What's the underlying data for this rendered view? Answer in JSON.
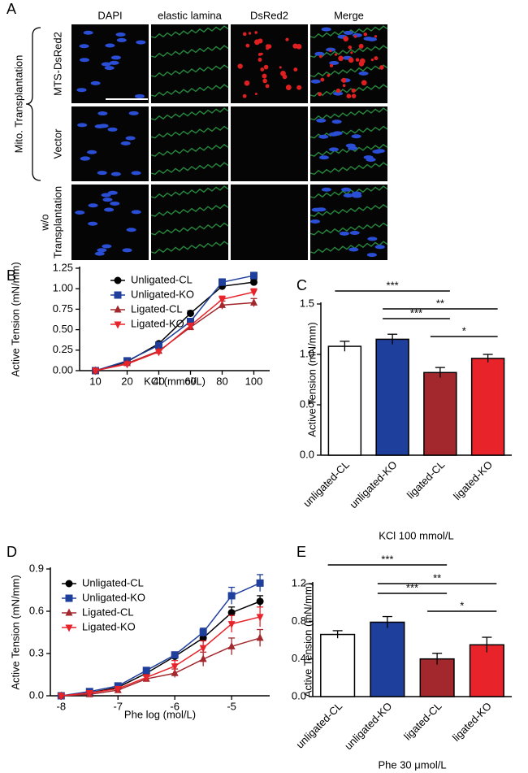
{
  "panel_a": {
    "label": "A",
    "columns": [
      "DAPI",
      "elastic lamina",
      "DsRed2",
      "Merge"
    ],
    "rows": [
      [
        "MTS-DsRed2"
      ],
      [
        "Vector"
      ],
      [
        "w/o",
        "Transplantation"
      ]
    ],
    "group": "Mito. Transplantation"
  },
  "chart_data": [
    {
      "type": "line",
      "panel": "B",
      "ylabel": "Active Tension (mN/mm)",
      "xlabel": "KCl (mmol/L)",
      "categories": [
        "10",
        "20",
        "40",
        "60",
        "80",
        "100"
      ],
      "ylim": [
        0,
        1.25
      ],
      "yticks": [
        {
          "value": 0,
          "label": "0.00"
        },
        {
          "value": 0.25,
          "label": "0.25"
        },
        {
          "value": 0.5,
          "label": "0.50"
        },
        {
          "value": 0.75,
          "label": "0.75"
        },
        {
          "value": 1,
          "label": "1.00"
        },
        {
          "value": 1.25,
          "label": "1.25"
        }
      ],
      "series": [
        {
          "name": "Unligated-CL",
          "color": "#000000",
          "marker": "circle",
          "values": [
            0,
            0.11,
            0.33,
            0.7,
            1.03,
            1.08
          ],
          "errors": [
            0,
            0.01,
            0.02,
            0.03,
            0.03,
            0.03
          ]
        },
        {
          "name": "Unligated-KO",
          "color": "#1f3f9c",
          "marker": "square",
          "values": [
            0,
            0.12,
            0.31,
            0.6,
            1.08,
            1.16
          ],
          "errors": [
            0,
            0.01,
            0.02,
            0.03,
            0.04,
            0.04
          ]
        },
        {
          "name": "Ligated-CL",
          "color": "#a3282d",
          "marker": "triangle",
          "values": [
            0,
            0.09,
            0.24,
            0.53,
            0.8,
            0.83
          ],
          "errors": [
            0,
            0.01,
            0.02,
            0.03,
            0.05,
            0.05
          ]
        },
        {
          "name": "Ligated-KO",
          "color": "#e8232a",
          "marker": "triangle-down",
          "values": [
            0,
            0.08,
            0.23,
            0.55,
            0.87,
            0.96
          ],
          "errors": [
            0,
            0.01,
            0.02,
            0.03,
            0.04,
            0.04
          ]
        }
      ]
    },
    {
      "type": "bar",
      "panel": "C",
      "ylabel": "Active Tension (mN/mm)",
      "xlabel": "KCl 100 mmol/L",
      "categories": [
        "unligated-CL",
        "unligated-KO",
        "ligated-CL",
        "ligated-KO"
      ],
      "values": [
        1.08,
        1.15,
        0.82,
        0.96
      ],
      "errors": [
        0.05,
        0.05,
        0.05,
        0.04
      ],
      "colors": [
        "#ffffff",
        "#1f3f9c",
        "#a3282d",
        "#e8232a"
      ],
      "ylim": [
        0,
        1.5
      ],
      "yticks": [
        {
          "value": 0,
          "label": "0.0"
        },
        {
          "value": 0.5,
          "label": "0.5"
        },
        {
          "value": 1,
          "label": "1.0"
        },
        {
          "value": 1.5,
          "label": "1.5"
        }
      ],
      "annotations": [
        "***",
        "**",
        "***",
        "*"
      ]
    },
    {
      "type": "line",
      "panel": "D",
      "ylabel": "Active Tension (mN/mm)",
      "xlabel": "Phe log (mol/L)",
      "x": [
        -8,
        -7.5,
        -7,
        -6.5,
        -6,
        -5.5,
        -5,
        -4.5
      ],
      "xlim": [
        -8.19,
        -4.33
      ],
      "xticks": [
        -8,
        -7,
        -6,
        -5
      ],
      "ylim": [
        0,
        0.9
      ],
      "yticks": [
        {
          "value": 0,
          "label": "0.0"
        },
        {
          "value": 0.3,
          "label": "0.3"
        },
        {
          "value": 0.6,
          "label": "0.6"
        },
        {
          "value": 0.9,
          "label": "0.9"
        }
      ],
      "series": [
        {
          "name": "Unligated-CL",
          "color": "#000000",
          "marker": "circle",
          "values": [
            0,
            0.02,
            0.06,
            0.16,
            0.28,
            0.41,
            0.59,
            0.67
          ],
          "errors": [
            0,
            0.01,
            0.01,
            0.02,
            0.02,
            0.03,
            0.04,
            0.04
          ]
        },
        {
          "name": "Unligated-KO",
          "color": "#1f3f9c",
          "marker": "square",
          "values": [
            0,
            0.03,
            0.07,
            0.18,
            0.29,
            0.45,
            0.71,
            0.8
          ],
          "errors": [
            0,
            0.01,
            0.01,
            0.02,
            0.02,
            0.03,
            0.06,
            0.06
          ]
        },
        {
          "name": "Ligated-CL",
          "color": "#a3282d",
          "marker": "triangle",
          "values": [
            0,
            0.01,
            0.04,
            0.12,
            0.16,
            0.26,
            0.35,
            0.41
          ],
          "errors": [
            0,
            0.01,
            0.01,
            0.02,
            0.03,
            0.05,
            0.06,
            0.06
          ]
        },
        {
          "name": "Ligated-KO",
          "color": "#e8232a",
          "marker": "triangle-down",
          "values": [
            0,
            0.02,
            0.05,
            0.13,
            0.21,
            0.34,
            0.51,
            0.56
          ],
          "errors": [
            0,
            0.01,
            0.01,
            0.02,
            0.04,
            0.05,
            0.06,
            0.07
          ]
        }
      ]
    },
    {
      "type": "bar",
      "panel": "E",
      "ylabel": "Active Tension (mN/mm)",
      "xlabel": "Phe 30 μmol/L",
      "categories": [
        "unligated-CL",
        "unligated-KO",
        "ligated-CL",
        "ligated-KO"
      ],
      "values": [
        0.66,
        0.79,
        0.4,
        0.55
      ],
      "errors": [
        0.04,
        0.06,
        0.06,
        0.08
      ],
      "colors": [
        "#ffffff",
        "#1f3f9c",
        "#a3282d",
        "#e8232a"
      ],
      "ylim": [
        0,
        1.2
      ],
      "yticks": [
        {
          "value": 0,
          "label": "0.0"
        },
        {
          "value": 0.4,
          "label": "0.4"
        },
        {
          "value": 0.8,
          "label": "0.8"
        },
        {
          "value": 1.2,
          "label": "1.2"
        }
      ],
      "annotations": [
        "***",
        "**",
        "***",
        "*"
      ]
    }
  ]
}
